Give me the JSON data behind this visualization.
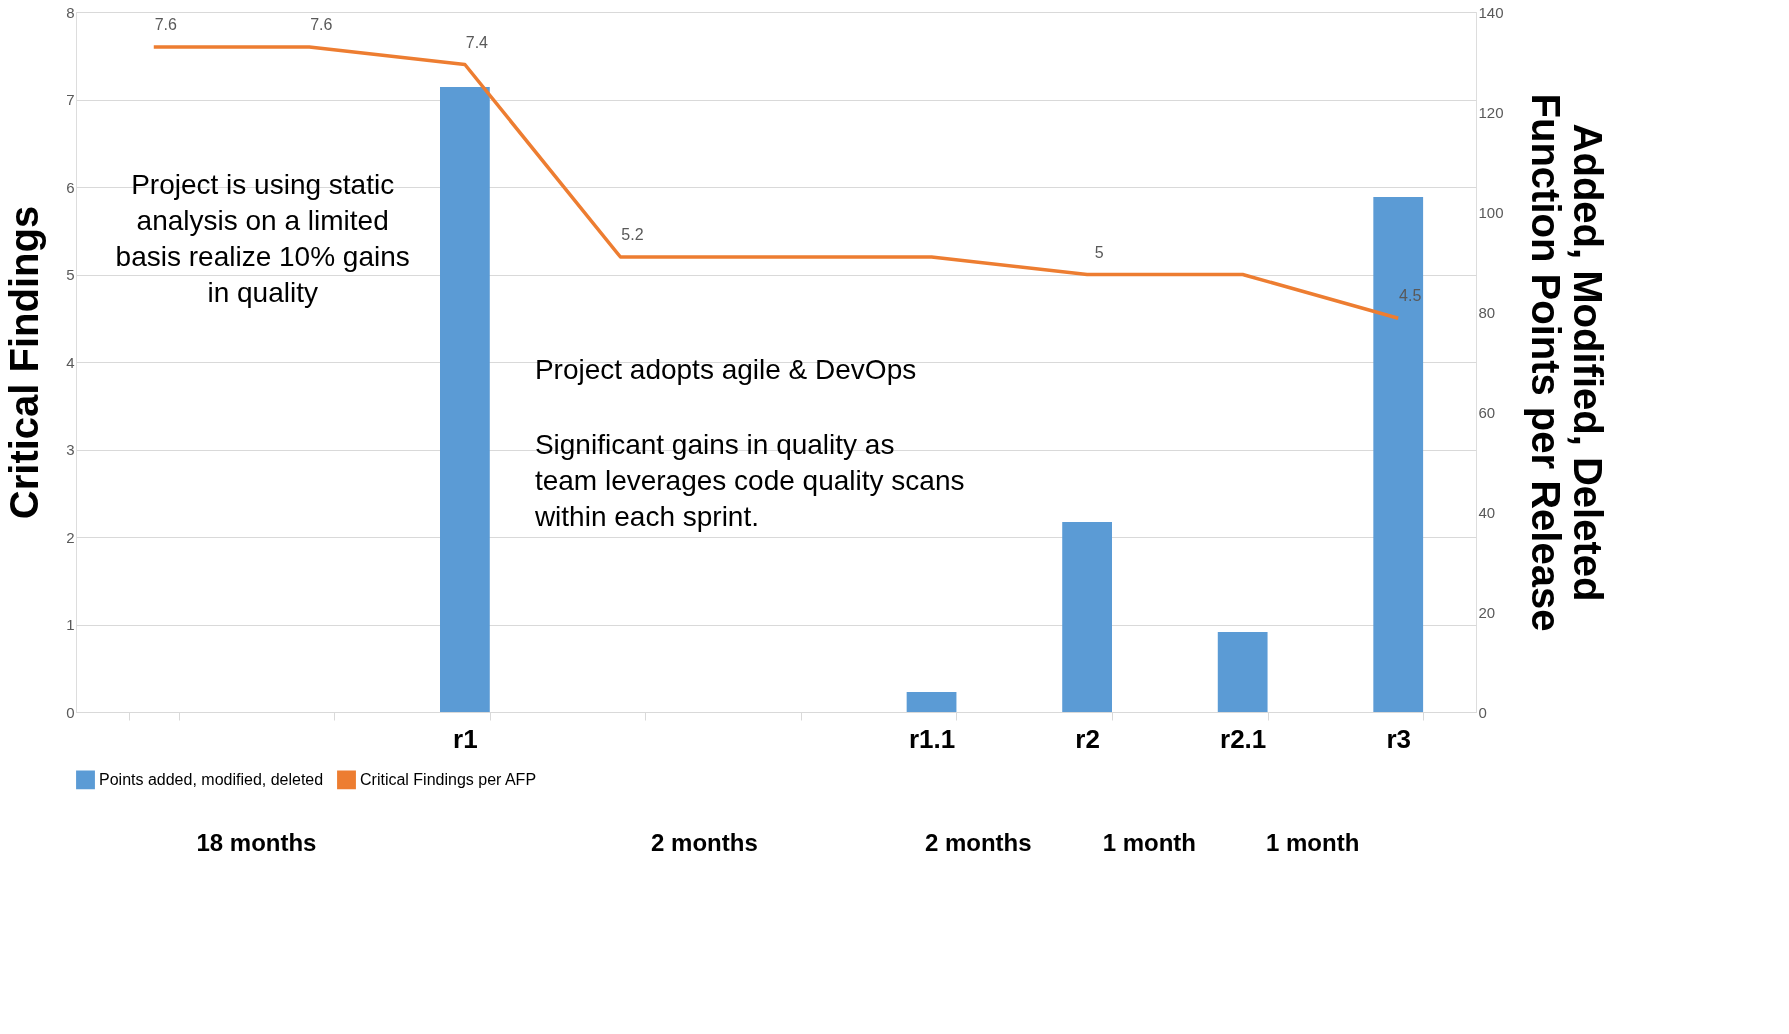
{
  "chart_data": {
    "type": "bar",
    "categories": [
      null,
      null,
      "r1",
      null,
      null,
      "r1.1",
      "r2",
      "r2.1",
      "r3"
    ],
    "series": [
      {
        "name": "Points added, modified, deleted",
        "axis": "y2",
        "color": "#5b9bd5",
        "values": [
          null,
          null,
          125,
          null,
          null,
          4,
          38,
          16,
          103
        ]
      },
      {
        "name": "Critical Findings per AFP",
        "type": "line",
        "axis": "y",
        "color": "#ed7d31",
        "values": [
          7.6,
          7.6,
          7.4,
          5.2,
          5.2,
          5.2,
          5,
          5,
          4.5
        ],
        "value_labels": [
          "7.6",
          "7.6",
          "7.4",
          "5.2",
          null,
          null,
          "5",
          null,
          "4.5"
        ]
      }
    ],
    "ylabel": "Critical Findings",
    "y2label": "Added, Modified, Deleted Function Points per Release",
    "ylim": [
      0,
      8
    ],
    "yticks": [
      0,
      1,
      2,
      3,
      4,
      5,
      6,
      7,
      8
    ],
    "y2lim": [
      0,
      140
    ],
    "y2ticks": [
      0,
      20,
      40,
      60,
      80,
      100,
      120,
      140
    ],
    "grid": "y",
    "legend": "bottom",
    "annotations": [
      "Project is using static analysis on a limited basis realize 10% gains in quality",
      "Project adopts agile & DevOps",
      "Significant gains in quality as team leverages code quality scans within each sprint.",
      "18 months",
      "2 months",
      "2 months",
      "1 month",
      "1 month"
    ]
  }
}
